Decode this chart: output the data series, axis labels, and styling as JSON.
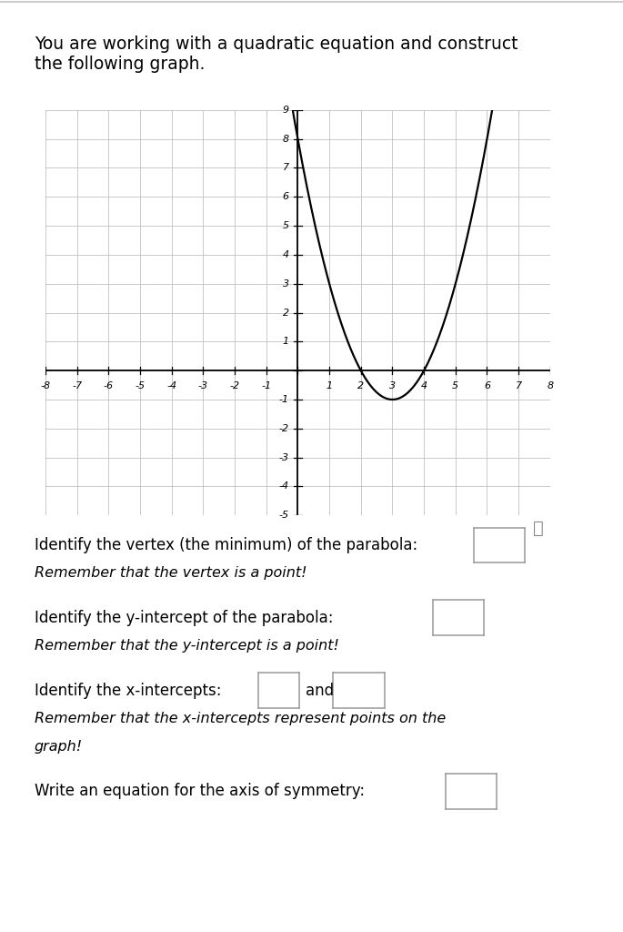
{
  "title_line1": "You are working with a quadratic equation and construct",
  "title_line2": "the following graph.",
  "equation_a": 1,
  "equation_b": -6,
  "equation_c": 8,
  "x_min": -8,
  "x_max": 8,
  "y_min": -5,
  "y_max": 9,
  "curve_color": "#000000",
  "grid_color": "#bbbbbb",
  "axis_color": "#000000",
  "background_color": "#ffffff",
  "curve_linewidth": 1.6,
  "fig_width": 6.85,
  "fig_height": 10.24,
  "dpi": 100,
  "title_fontsize": 13.5,
  "tick_fontsize": 8,
  "q_fontsize": 12,
  "qi_fontsize": 11.5,
  "top_border_color": "#cccccc",
  "box_edge_color": "#999999",
  "q1_text": "Identify the vertex (the minimum) of the parabola:",
  "q1_note": "Remember that the vertex is a point!",
  "q2_text": "Identify the y-intercept of the parabola:",
  "q2_note": "Remember that the y-intercept is a point!",
  "q3_text": "Identify the x-intercepts:",
  "q3_and": "and",
  "q3_note1": "Remember that the x-intercepts represent points on the",
  "q3_note2": "graph!",
  "q4_text": "Write an equation for the axis of symmetry:",
  "magnify_icon": "🔍"
}
